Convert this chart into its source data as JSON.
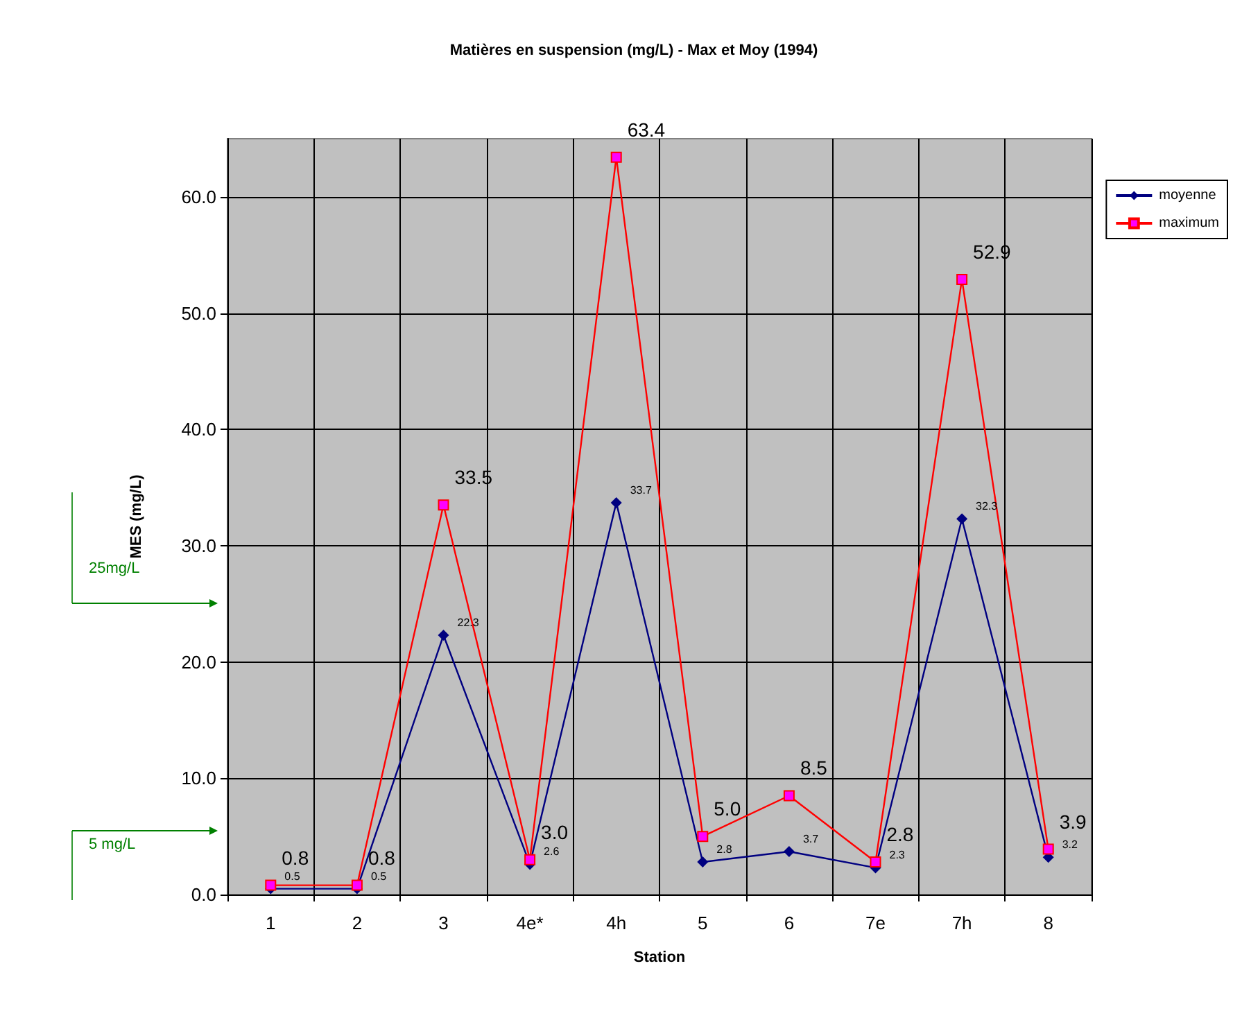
{
  "chart_data": {
    "type": "line",
    "title": "Matières en suspension (mg/L) - Max et Moy (1994)",
    "xlabel": "Station",
    "ylabel": "MES (mg/L)",
    "categories": [
      "1",
      "2",
      "3",
      "4e*",
      "4h",
      "5",
      "6",
      "7e",
      "7h",
      "8"
    ],
    "series": [
      {
        "name": "moyenne",
        "color": "#000080",
        "marker": "diamond",
        "values": [
          0.5,
          0.5,
          22.3,
          2.6,
          33.7,
          2.8,
          3.7,
          2.3,
          32.3,
          3.2
        ],
        "value_labels": [
          "0.5",
          "0.5",
          "22.3",
          "2.6",
          "33.7",
          "2.8",
          "3.7",
          "2.3",
          "32.3",
          "3.2"
        ]
      },
      {
        "name": "maximum",
        "color": "#ff0000",
        "marker": "square",
        "values": [
          0.8,
          0.8,
          33.5,
          3.0,
          63.4,
          5.0,
          8.5,
          2.8,
          52.9,
          3.9
        ],
        "value_labels": [
          "0.8",
          "0.8",
          "33.5",
          "3.0",
          "63.4",
          "5.0",
          "8.5",
          "2.8",
          "52.9",
          "3.9"
        ]
      }
    ],
    "ylim": [
      0,
      65
    ],
    "yticks": [
      {
        "value": 0,
        "label": "0.0"
      },
      {
        "value": 10,
        "label": "10.0"
      },
      {
        "value": 20,
        "label": "20.0"
      },
      {
        "value": 30,
        "label": "30.0"
      },
      {
        "value": 40,
        "label": "40.0"
      },
      {
        "value": 50,
        "label": "50.0"
      },
      {
        "value": 60,
        "label": "60.0"
      }
    ],
    "grid": true,
    "legend": "right",
    "annotations": [
      "25mg/L",
      "5 mg/L"
    ]
  }
}
